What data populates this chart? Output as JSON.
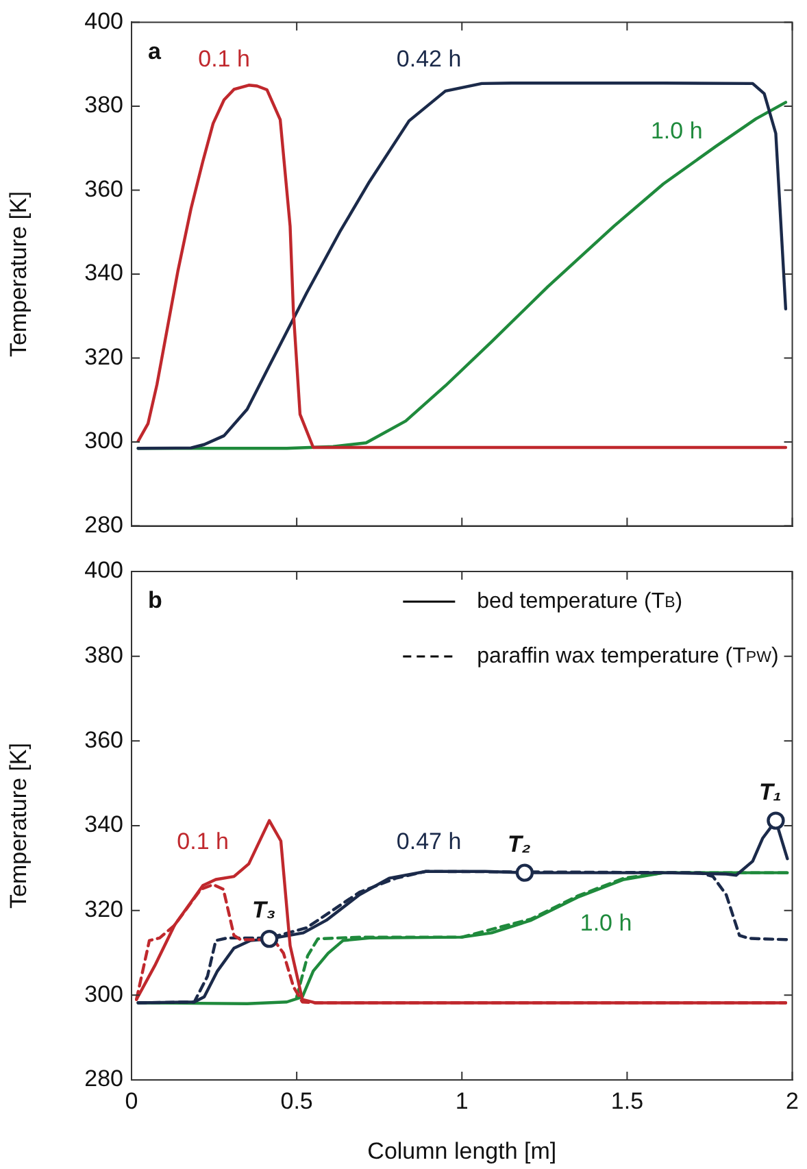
{
  "chart_data": [
    {
      "type": "line",
      "annotations": [
        "a"
      ],
      "ylabel": "Temperature [K]",
      "xlim": [
        0,
        2
      ],
      "xticks": [
        0,
        0.5,
        1,
        1.5,
        2
      ],
      "ylim": [
        280,
        400
      ],
      "yticks": [
        280,
        300,
        320,
        340,
        360,
        380,
        400
      ],
      "tick_labels": "y",
      "marker": "none",
      "grid": false,
      "series": [
        {
          "name": "0.1 h",
          "color": "#c0282d",
          "x": [
            0.02,
            0.05,
            0.077,
            0.14,
            0.18,
            0.216,
            0.247,
            0.28,
            0.31,
            0.355,
            0.38,
            0.41,
            0.45,
            0.48,
            0.49,
            0.51,
            0.55,
            1.98
          ],
          "values": [
            300.2,
            304.4,
            313.7,
            340.6,
            355.6,
            366.9,
            375.9,
            381.5,
            384,
            385,
            384.8,
            383.9,
            376.8,
            351.4,
            331,
            306.6,
            298.7,
            298.7
          ]
        },
        {
          "name": "0.42 h",
          "color": "#1b2a4a",
          "x": [
            0.02,
            0.18,
            0.22,
            0.28,
            0.35,
            0.42,
            0.53,
            0.63,
            0.72,
            0.84,
            0.95,
            1.06,
            1.15,
            1.61,
            1.88,
            1.915,
            1.95,
            1.98
          ],
          "values": [
            298.5,
            298.6,
            299.4,
            301.5,
            307.8,
            318.6,
            335.5,
            350,
            362,
            376.5,
            383.6,
            385.4,
            385.5,
            385.5,
            385.4,
            383,
            373.5,
            331.7
          ]
        },
        {
          "name": "1.0 h",
          "color": "#1f8a3c",
          "x": [
            0.02,
            0.47,
            0.61,
            0.71,
            0.83,
            0.95,
            1.09,
            1.26,
            1.46,
            1.61,
            1.77,
            1.89,
            1.98
          ],
          "values": [
            298.5,
            298.5,
            298.9,
            299.8,
            305,
            313.4,
            323.9,
            337,
            351.4,
            361.5,
            370.5,
            377,
            380.9
          ]
        }
      ]
    },
    {
      "type": "line",
      "annotations": [
        "b",
        {
          "text": "T₁",
          "x": 1.95,
          "y": 341.2
        },
        {
          "text": "T₂",
          "x": 1.19,
          "y": 328.9
        },
        {
          "text": "T₃",
          "x": 0.417,
          "y": 313.3
        }
      ],
      "xlabel": "Column length [m]",
      "ylabel": "Temperature [K]",
      "xlim": [
        0,
        2
      ],
      "xticks": [
        0,
        0.5,
        1,
        1.5,
        2
      ],
      "ylim": [
        280,
        400
      ],
      "yticks": [
        280,
        300,
        320,
        340,
        360,
        380,
        400
      ],
      "marker": "none",
      "grid": false,
      "legend": "top right",
      "series": [
        {
          "name": "bed temperature (T$_{B}$)",
          "color": "#000000",
          "line_style": "solid"
        },
        {
          "name": "paraffin wax temperature (T$_{PW}$)",
          "color": "#000000",
          "line_style": "dashed"
        },
        {
          "name": "0.1 h",
          "color": "#c0282d",
          "line_style": "solid",
          "x": [
            0.015,
            0.07,
            0.13,
            0.216,
            0.255,
            0.31,
            0.355,
            0.417,
            0.452,
            0.48,
            0.517,
            0.556,
            1.98
          ],
          "values": [
            299,
            306.9,
            316.5,
            325.9,
            327.3,
            328,
            331,
            341.2,
            336.4,
            311.7,
            299,
            298.2,
            298.2
          ]
        },
        {
          "color": "#c0282d",
          "line_style": "dashed",
          "x": [
            0.015,
            0.054,
            0.085,
            0.13,
            0.21,
            0.247,
            0.278,
            0.31,
            0.33,
            0.43,
            0.46,
            0.49,
            0.517,
            0.556,
            1.98
          ],
          "values": [
            299,
            312.9,
            313.5,
            316.5,
            325,
            326.1,
            325,
            314.1,
            313.1,
            313.1,
            309.9,
            302,
            298.4,
            298.2,
            298.2
          ]
        },
        {
          "name": "0.47 h",
          "color": "#1b2a4a",
          "line_style": "solid",
          "x": [
            0.02,
            0.19,
            0.22,
            0.26,
            0.31,
            0.36,
            0.417,
            0.52,
            0.59,
            0.69,
            0.78,
            0.89,
            1.07,
            1.19,
            1.61,
            1.8,
            1.83,
            1.88,
            1.91,
            1.95,
            1.985
          ],
          "values": [
            298.2,
            298.4,
            299.6,
            305.7,
            311.1,
            312.9,
            313.3,
            314.7,
            317.7,
            323.7,
            327.6,
            329.2,
            329.2,
            328.9,
            328.9,
            328.6,
            328.3,
            331.6,
            337,
            341.2,
            332.2
          ]
        },
        {
          "color": "#1b2a4a",
          "line_style": "dashed",
          "x": [
            0.02,
            0.19,
            0.23,
            0.255,
            0.29,
            0.417,
            0.53,
            0.69,
            0.8,
            0.89,
            1.72,
            1.76,
            1.8,
            1.84,
            1.87,
            1.985
          ],
          "values": [
            298.2,
            298.4,
            304.5,
            312.9,
            313.5,
            313.5,
            315.9,
            324.3,
            327.6,
            329.2,
            328.9,
            328,
            323.7,
            314.1,
            313.4,
            313.1
          ]
        },
        {
          "name": "1.0 h",
          "color": "#1f8a3c",
          "line_style": "solid",
          "x": [
            0.02,
            0.35,
            0.47,
            0.517,
            0.55,
            0.595,
            0.64,
            0.72,
            1,
            1.09,
            1.21,
            1.35,
            1.49,
            1.61,
            1.985
          ],
          "values": [
            298.2,
            298,
            298.4,
            299.6,
            305.7,
            309.9,
            312.9,
            313.5,
            313.7,
            314.7,
            317.7,
            323.1,
            327.3,
            328.9,
            328.9
          ]
        },
        {
          "color": "#1f8a3c",
          "line_style": "dashed",
          "x": [
            0.5,
            0.533,
            0.564,
            0.69,
            1,
            1.21,
            1.35,
            1.49,
            1.61,
            1.985
          ],
          "values": [
            299.6,
            309.3,
            313.3,
            313.7,
            313.7,
            318,
            323.4,
            327.6,
            328.9,
            328.9
          ]
        },
        {
          "type": "scatter",
          "color": "#1b2a4a",
          "marker": "circle",
          "x": [
            0.417,
            1.19,
            1.95
          ],
          "values": [
            313.3,
            328.9,
            341.2
          ]
        }
      ]
    }
  ]
}
